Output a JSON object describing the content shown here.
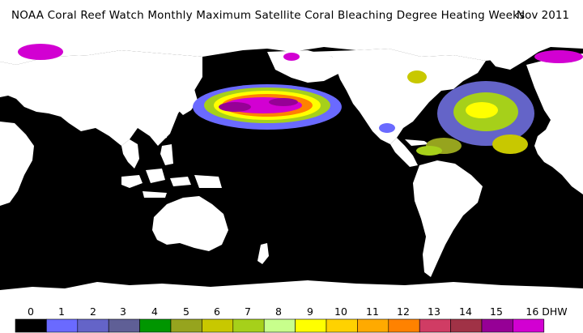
{
  "title": "NOAA Coral Reef Watch Monthly Maximum Satellite Coral Bleaching Degree Heating Weeks",
  "date": "Nov 2011",
  "legend": {
    "unit": "DHW",
    "ticks": [
      "0",
      "1",
      "2",
      "3",
      "4",
      "5",
      "6",
      "7",
      "8",
      "9",
      "10",
      "11",
      "12",
      "13",
      "14",
      "15",
      "16 DHW"
    ],
    "colors": [
      "#000000",
      "#6a6aff",
      "#6464c8",
      "#5f5f96",
      "#009600",
      "#96a41e",
      "#c8c800",
      "#a6d01a",
      "#c8ff8c",
      "#ffff00",
      "#ffd200",
      "#ffaa00",
      "#ff8200",
      "#d03c64",
      "#a03246",
      "#960096",
      "#d200d2"
    ]
  },
  "colors": {
    "ocean": "#000000",
    "land": "#ffffff",
    "dhw_low": "#6a6aff",
    "dhw_mid": "#c8c800",
    "dhw_high": "#d200d2"
  }
}
